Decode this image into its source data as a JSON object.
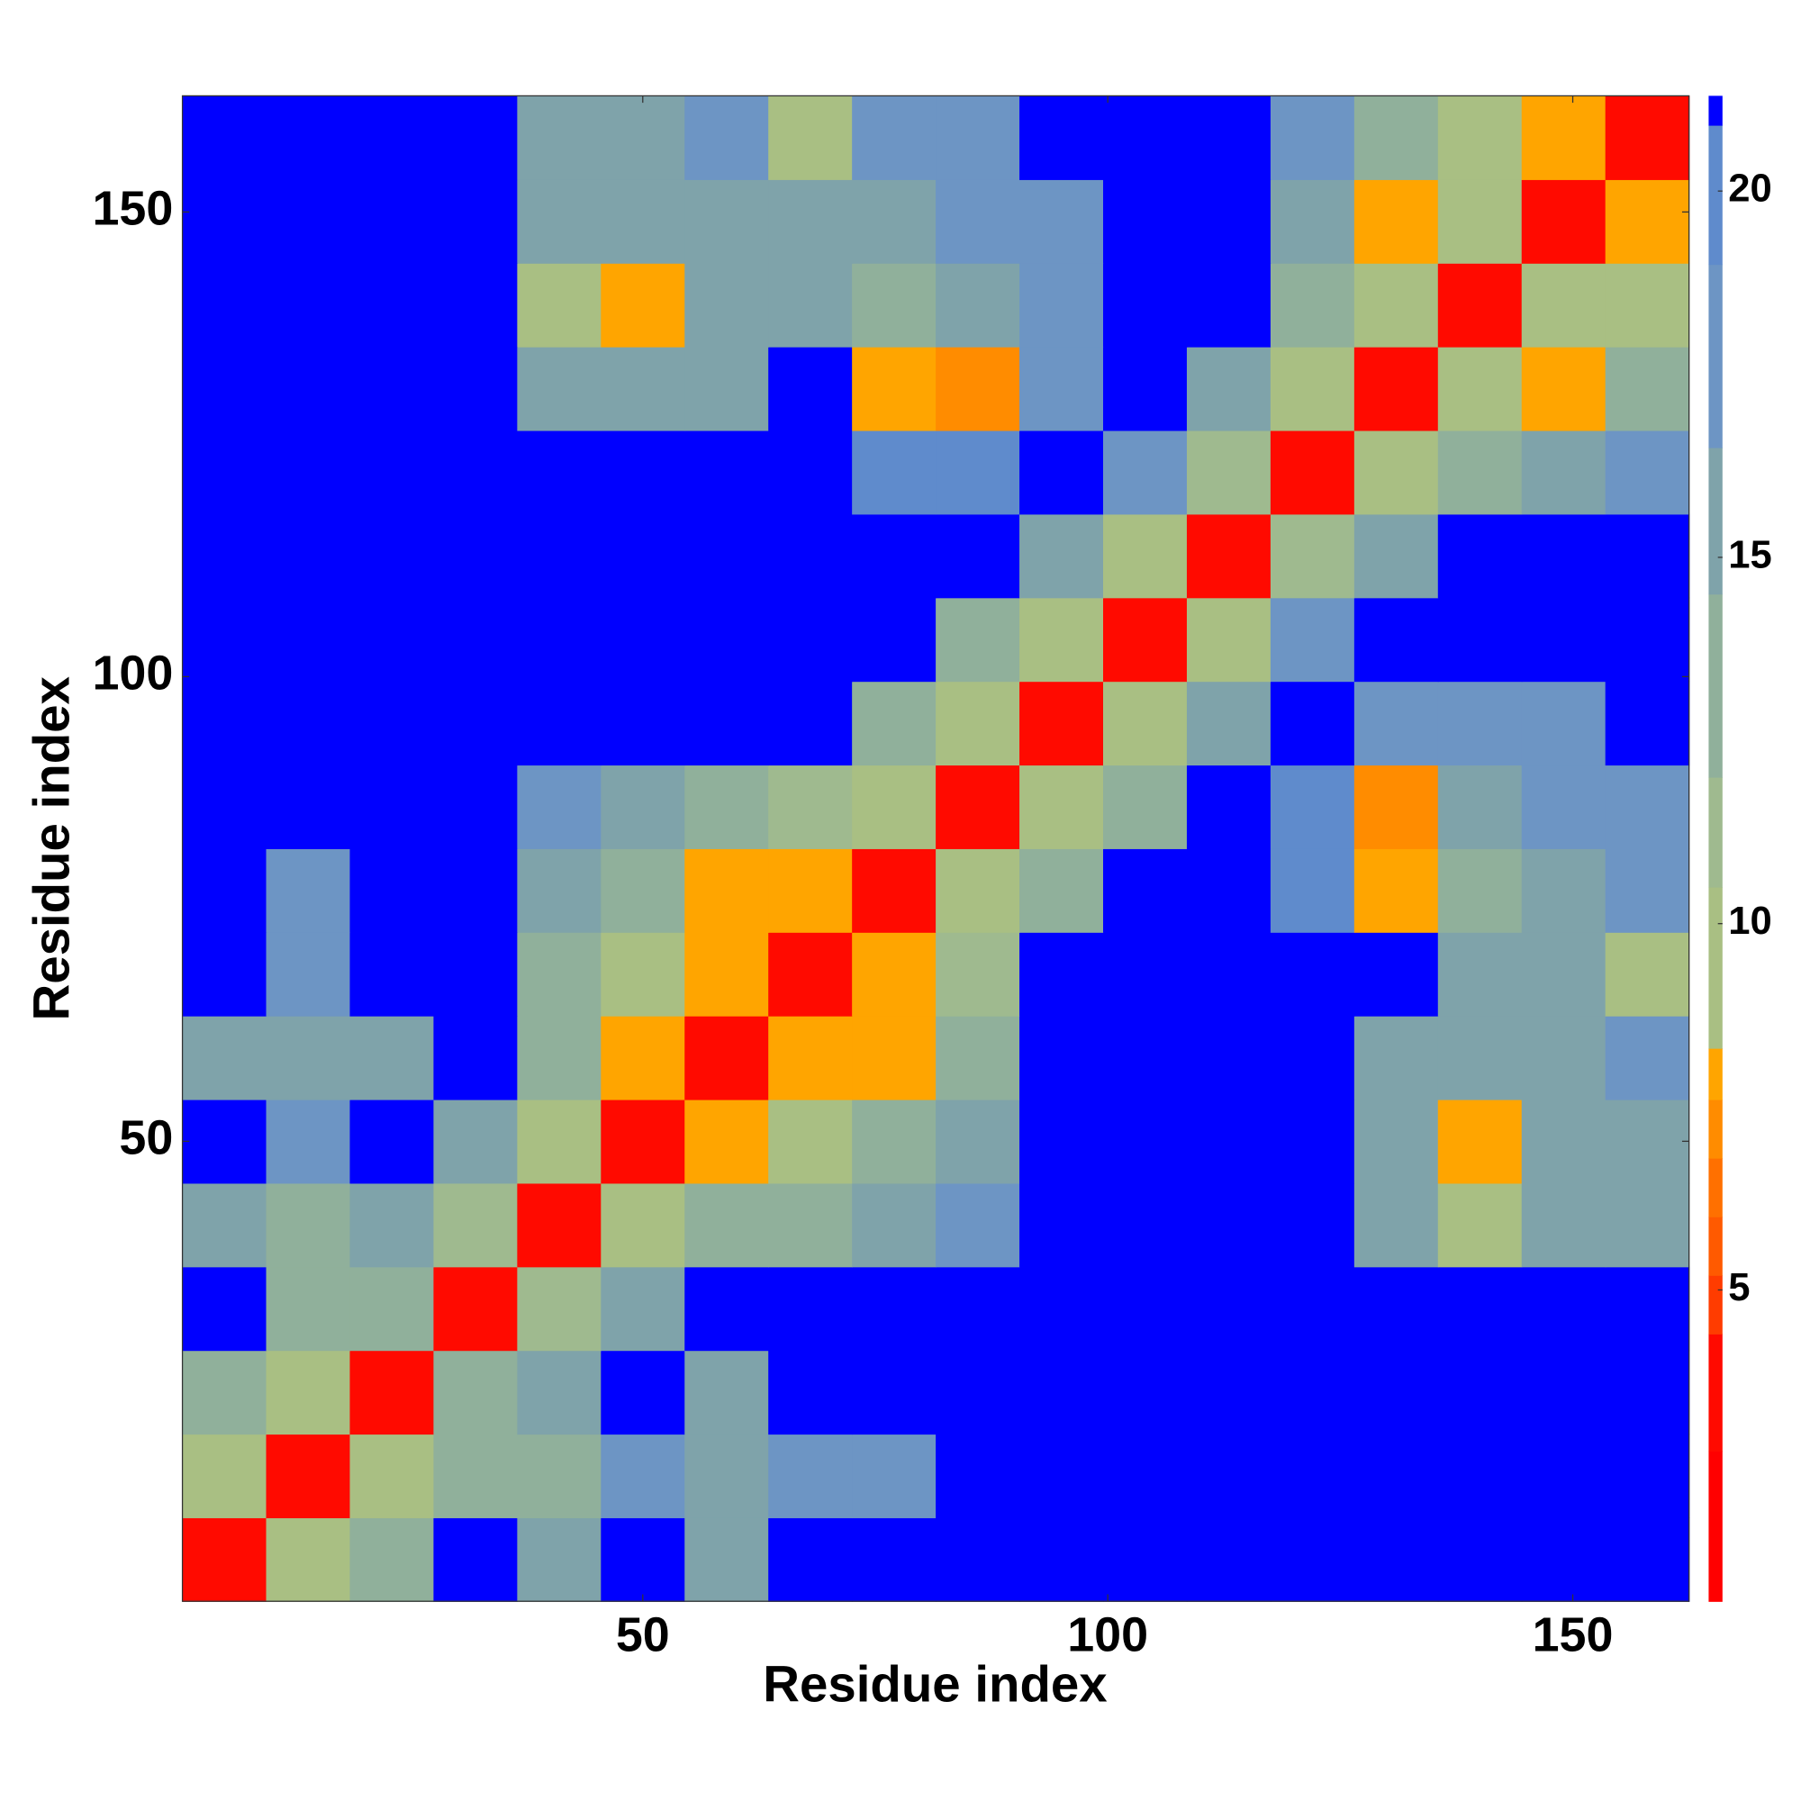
{
  "chart_data": {
    "type": "heatmap",
    "xlabel": "Residue index",
    "ylabel": "Residue index",
    "xlim": [
      0.5,
      162.5
    ],
    "ylim": [
      0.5,
      162.5
    ],
    "xticks": [
      50,
      100,
      150
    ],
    "yticks": [
      50,
      100,
      150
    ],
    "bins": [
      0.5,
      9.5,
      18.5,
      27.5,
      36.5,
      45.5,
      54.5,
      63.5,
      72.5,
      81.5,
      90.5,
      99.5,
      108.5,
      117.5,
      126.5,
      135.5,
      144.5,
      153.5,
      162.5
    ],
    "z": [
      [
        3.8,
        9,
        14,
        21,
        16,
        21,
        16,
        21,
        21,
        21,
        21,
        21,
        21,
        21,
        21,
        21,
        21,
        21
      ],
      [
        9,
        3.8,
        9,
        14,
        14,
        18,
        15,
        18,
        17,
        21,
        21,
        21,
        21,
        21,
        21,
        21,
        21,
        21
      ],
      [
        14,
        9,
        3.8,
        12,
        15,
        21,
        16,
        21,
        21,
        21,
        21,
        21,
        21,
        21,
        21,
        21,
        21,
        21
      ],
      [
        21,
        14,
        12,
        3.8,
        11,
        15,
        21,
        21,
        21,
        21,
        21,
        21,
        21,
        21,
        21,
        21,
        21,
        21
      ],
      [
        16,
        14,
        15,
        11,
        3.8,
        9,
        12,
        14,
        16,
        17,
        21,
        21,
        21,
        21,
        15,
        9,
        15,
        16
      ],
      [
        21,
        18,
        21,
        15,
        9,
        3.8,
        8,
        10,
        12,
        15,
        21,
        21,
        21,
        21,
        15,
        8,
        15,
        16
      ],
      [
        16,
        15,
        16,
        21,
        12,
        8,
        3.8,
        8,
        8,
        14,
        21,
        21,
        21,
        21,
        16,
        16,
        16,
        17
      ],
      [
        21,
        18,
        21,
        21,
        14,
        10,
        8,
        3.8,
        8,
        11,
        21,
        21,
        21,
        21,
        21,
        15,
        15,
        9
      ],
      [
        21,
        17,
        21,
        21,
        16,
        12,
        8,
        8,
        3.8,
        9,
        13,
        21,
        21,
        19,
        8,
        14,
        16,
        17
      ],
      [
        21,
        21,
        21,
        21,
        17,
        15,
        14,
        11,
        9,
        3.8,
        9,
        13,
        21,
        19,
        7,
        15,
        17,
        17
      ],
      [
        21,
        21,
        21,
        21,
        21,
        21,
        21,
        21,
        13,
        9,
        3.8,
        9,
        15,
        21,
        18,
        18,
        18,
        21
      ],
      [
        21,
        21,
        21,
        21,
        21,
        21,
        21,
        21,
        21,
        13,
        9,
        3.8,
        10,
        17,
        21,
        21,
        21,
        21
      ],
      [
        21,
        21,
        21,
        21,
        21,
        21,
        21,
        21,
        21,
        21,
        15,
        10,
        3.8,
        11,
        16,
        21,
        21,
        21
      ],
      [
        21,
        21,
        21,
        21,
        21,
        21,
        21,
        21,
        19,
        19,
        21,
        17,
        11,
        3.8,
        9,
        14,
        16,
        18
      ],
      [
        21,
        21,
        21,
        21,
        15,
        15,
        16,
        21,
        8,
        7,
        18,
        21,
        16,
        9,
        3.8,
        9,
        8,
        13
      ],
      [
        21,
        21,
        21,
        21,
        9,
        8,
        16,
        15,
        14,
        15,
        18,
        21,
        21,
        14,
        9,
        3.8,
        9,
        9
      ],
      [
        21,
        21,
        21,
        21,
        15,
        15,
        16,
        15,
        16,
        17,
        18,
        21,
        21,
        16,
        8,
        9,
        3.8,
        8
      ],
      [
        21,
        21,
        21,
        21,
        16,
        16,
        17,
        9,
        17,
        17,
        21,
        21,
        21,
        18,
        13,
        9,
        8,
        3.8
      ]
    ],
    "colorbar": {
      "lim": [
        0.75,
        21.3
      ],
      "ticks": [
        5,
        10,
        15,
        20
      ],
      "stops": [
        {
          "value": 0.75,
          "color": "#ff0000"
        },
        {
          "value": 2.8,
          "color": "#ff0a00"
        },
        {
          "value": 4.4,
          "color": "#ff3c00"
        },
        {
          "value": 5.2,
          "color": "#ff5a00"
        },
        {
          "value": 6.0,
          "color": "#ff7000"
        },
        {
          "value": 6.8,
          "color": "#ff8c00"
        },
        {
          "value": 7.6,
          "color": "#ffa500"
        },
        {
          "value": 8.3,
          "color": "#a9bf83"
        },
        {
          "value": 10.5,
          "color": "#9fba8f"
        },
        {
          "value": 12,
          "color": "#90b09b"
        },
        {
          "value": 14.5,
          "color": "#7fa3aa"
        },
        {
          "value": 16.5,
          "color": "#6d95c4"
        },
        {
          "value": 19,
          "color": "#5f8bcc"
        },
        {
          "value": 20.9,
          "color": "#0000ff"
        }
      ]
    }
  }
}
